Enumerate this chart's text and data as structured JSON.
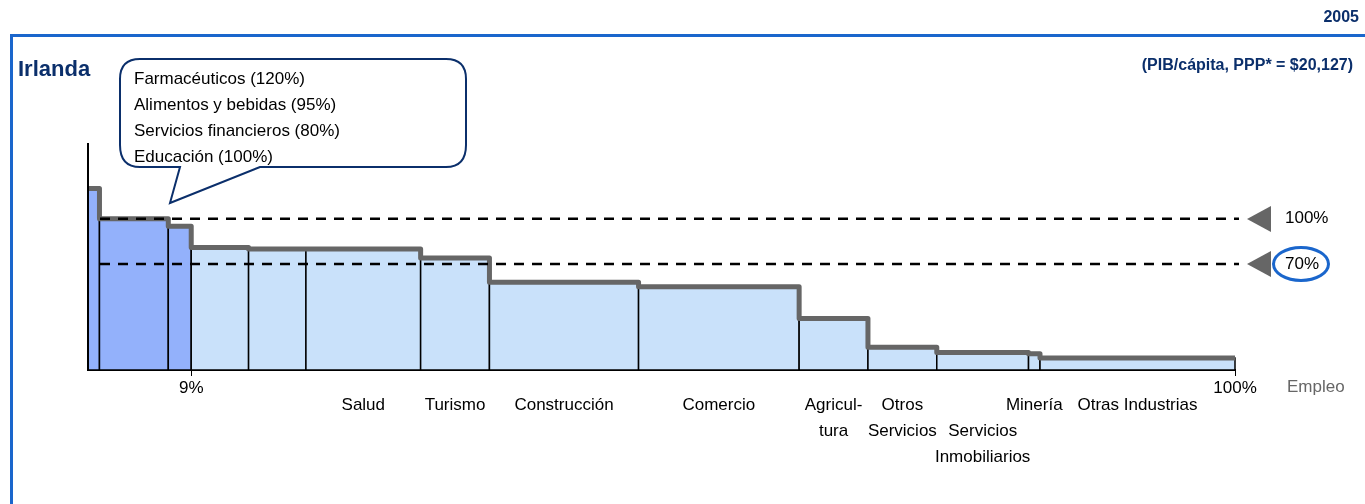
{
  "chart_data": {
    "type": "histogram",
    "title": "Irlanda",
    "subtitle": "(PIB/cápita, PPP* = $20,127)",
    "xlabel": "Empleo",
    "bins": [
      0,
      1,
      7,
      9,
      14,
      19,
      29,
      35,
      48,
      62,
      68,
      74,
      82,
      83,
      100
    ],
    "values": [
      120,
      100,
      95,
      81,
      80,
      80,
      74,
      58,
      55,
      34,
      15,
      11.5,
      10.7,
      8
    ],
    "series": [
      {
        "type": "step",
        "color": "#666666",
        "x": [
          0,
          1,
          7,
          9,
          14,
          19,
          29,
          35,
          48,
          62,
          68,
          74,
          82,
          83,
          100
        ],
        "values": [
          120,
          100,
          95,
          81,
          80,
          80,
          74,
          58,
          55,
          34,
          15,
          11.5,
          10.7,
          8,
          8
        ]
      }
    ],
    "categories": [
      null,
      null,
      null,
      null,
      null,
      "Salud",
      "Turismo",
      "Construcción",
      "Comercio",
      "Agricul-\ntura",
      "Otros\nServicios",
      "Servicios\nInmobiliarios",
      "Minería",
      "Otras Industrias"
    ],
    "colors": [
      "#93b1fb",
      "#93b1fb",
      "#93b1fb",
      "#c9e1fa",
      "#c9e1fa",
      "#c9e1fa",
      "#c9e1fa",
      "#c9e1fa",
      "#c9e1fa",
      "#c9e1fa",
      "#c9e1fa",
      "#c9e1fa",
      "#c9e1fa",
      "#c9e1fa"
    ],
    "xlim": [
      0,
      100
    ],
    "xticks": [
      {
        "value": 9,
        "label": "9%"
      },
      {
        "value": 100,
        "label": "100%"
      }
    ],
    "ylim": [
      0,
      150
    ],
    "yticks": [
      {
        "value": 70,
        "label": "70%"
      },
      {
        "value": 100,
        "label": "100%"
      }
    ],
    "ref_lines": [
      {
        "axis": "y",
        "value": 100,
        "color": "#000000",
        "line_style": "dashed"
      },
      {
        "axis": "y",
        "value": 70,
        "color": "#000000",
        "line_style": "dashed"
      }
    ],
    "annotations": [
      "2005",
      "Farmacéuticos (120%)",
      "Alimentos y bebidas (95%)",
      "Servicios financieros (80%)",
      "Educación (100%)"
    ]
  }
}
